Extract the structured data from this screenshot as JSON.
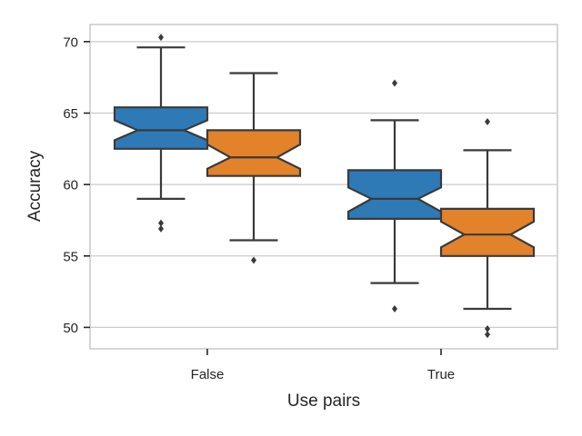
{
  "chart_data": {
    "type": "boxplot",
    "notched": true,
    "xlabel": "Use pairs",
    "ylabel": "Accuracy",
    "categories": [
      "False",
      "True"
    ],
    "ylim": [
      48.5,
      71.2
    ],
    "yticks": [
      50,
      55,
      60,
      65,
      70
    ],
    "grid": true,
    "legend": "none",
    "series": [
      {
        "color": "#2e7ab6",
        "boxes": [
          {
            "category": "False",
            "whisker_low": 59.0,
            "q1": 62.5,
            "median": 63.8,
            "q3": 65.4,
            "whisker_high": 69.6,
            "notch_low": 63.1,
            "notch_high": 64.5,
            "outliers": [
              70.3,
              57.3,
              56.9
            ]
          },
          {
            "category": "True",
            "whisker_low": 53.1,
            "q1": 57.6,
            "median": 59.0,
            "q3": 61.0,
            "whisker_high": 64.5,
            "notch_low": 58.1,
            "notch_high": 59.8,
            "outliers": [
              67.1,
              51.3
            ]
          }
        ]
      },
      {
        "color": "#e2822a",
        "boxes": [
          {
            "category": "False",
            "whisker_low": 56.1,
            "q1": 60.6,
            "median": 61.9,
            "q3": 63.8,
            "whisker_high": 67.8,
            "notch_low": 61.1,
            "notch_high": 62.8,
            "outliers": [
              54.7
            ]
          },
          {
            "category": "True",
            "whisker_low": 51.3,
            "q1": 55.0,
            "median": 56.5,
            "q3": 58.3,
            "whisker_high": 62.4,
            "notch_low": 55.6,
            "notch_high": 57.4,
            "outliers": [
              64.4,
              49.9,
              49.5
            ]
          }
        ]
      }
    ]
  }
}
